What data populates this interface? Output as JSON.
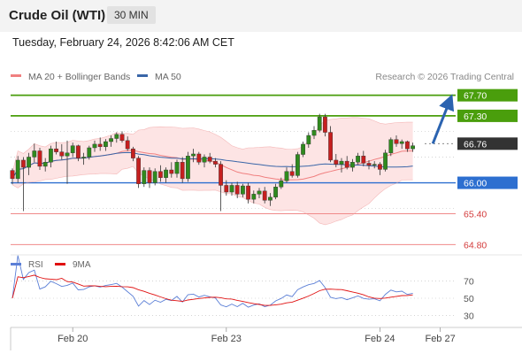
{
  "header": {
    "title": "Crude Oil (WTI)",
    "timeframe": "30 MIN"
  },
  "datetime": "Tuesday, February 24, 2026 8:42:06 AM CET",
  "colors": {
    "bollinger": "#f0a0a0",
    "bollinger_fill": "#fde4e4",
    "ma20": "#f08080",
    "ma50": "#3a66a8",
    "resistance": "#4a9e0c",
    "current": "#333333",
    "pivot": "#2d6fd0",
    "support": "#f08a8a",
    "candle_up": "#2f8a1e",
    "candle_down": "#c61f1f",
    "rsi": "#5b7fd6",
    "rsi_ma": "#e01010",
    "arrow": "#2b63b0"
  },
  "chart_data": [
    {
      "type": "candlestick",
      "legend": [
        {
          "name": "MA 20 + Bollinger Bands",
          "color": "#f08080"
        },
        {
          "name": "MA 50",
          "color": "#3a66a8"
        }
      ],
      "credit": "Research © 2026 Trading Central",
      "ylim": [
        64.6,
        67.9
      ],
      "x_ticks": [
        {
          "label": "Feb 20",
          "index": 11
        },
        {
          "label": "Feb 23",
          "index": 39
        },
        {
          "label": "Feb 24",
          "index": 67
        },
        {
          "label": "Feb 27",
          "index": 78
        }
      ],
      "levels": [
        {
          "value": 67.7,
          "label": "67.70",
          "kind": "resistance"
        },
        {
          "value": 67.3,
          "label": "67.30",
          "kind": "resistance"
        },
        {
          "value": 66.76,
          "label": "66.76",
          "kind": "current"
        },
        {
          "value": 66.0,
          "label": "66.00",
          "kind": "pivot"
        },
        {
          "value": 65.4,
          "label": "65.40",
          "kind": "support"
        },
        {
          "value": 64.8,
          "label": "64.80",
          "kind": "support"
        }
      ],
      "projection": {
        "from_index": 76,
        "from_value": 66.76,
        "to_value": 67.7
      },
      "candles": [
        [
          66.24,
          66.28,
          65.97,
          66.08
        ],
        [
          66.08,
          66.52,
          66.0,
          66.44
        ],
        [
          66.44,
          66.5,
          65.45,
          66.3
        ],
        [
          66.3,
          66.58,
          66.15,
          66.5
        ],
        [
          66.5,
          66.76,
          66.4,
          66.62
        ],
        [
          66.62,
          66.68,
          66.25,
          66.32
        ],
        [
          66.32,
          66.48,
          66.22,
          66.4
        ],
        [
          66.4,
          66.72,
          66.3,
          66.66
        ],
        [
          66.66,
          66.8,
          66.55,
          66.6
        ],
        [
          66.6,
          66.75,
          66.45,
          66.52
        ],
        [
          66.52,
          66.82,
          65.98,
          66.58
        ],
        [
          66.58,
          66.78,
          66.5,
          66.72
        ],
        [
          66.72,
          66.74,
          66.42,
          66.48
        ],
        [
          66.48,
          66.58,
          66.35,
          66.5
        ],
        [
          66.5,
          66.72,
          66.45,
          66.68
        ],
        [
          66.68,
          66.82,
          66.6,
          66.75
        ],
        [
          66.75,
          66.88,
          66.62,
          66.7
        ],
        [
          66.7,
          66.85,
          66.62,
          66.8
        ],
        [
          66.8,
          66.92,
          66.7,
          66.86
        ],
        [
          66.86,
          66.98,
          66.78,
          66.94
        ],
        [
          66.94,
          67.0,
          66.78,
          66.82
        ],
        [
          66.82,
          66.9,
          66.62,
          66.66
        ],
        [
          66.66,
          66.7,
          66.42,
          66.48
        ],
        [
          66.48,
          66.52,
          65.9,
          65.98
        ],
        [
          65.98,
          66.3,
          65.92,
          66.24
        ],
        [
          66.24,
          66.3,
          65.9,
          66.0
        ],
        [
          66.0,
          66.28,
          65.95,
          66.22
        ],
        [
          66.22,
          66.34,
          66.02,
          66.1
        ],
        [
          66.1,
          66.3,
          66.0,
          66.25
        ],
        [
          66.25,
          66.4,
          66.1,
          66.18
        ],
        [
          66.18,
          66.45,
          66.1,
          66.4
        ],
        [
          66.4,
          66.5,
          66.0,
          66.08
        ],
        [
          66.08,
          66.6,
          66.02,
          66.52
        ],
        [
          66.52,
          66.66,
          66.4,
          66.56
        ],
        [
          66.56,
          66.6,
          66.35,
          66.4
        ],
        [
          66.4,
          66.55,
          66.3,
          66.5
        ],
        [
          66.5,
          66.58,
          66.38,
          66.42
        ],
        [
          66.42,
          66.48,
          66.3,
          66.36
        ],
        [
          66.36,
          66.42,
          65.45,
          65.95
        ],
        [
          65.95,
          66.05,
          65.75,
          65.82
        ],
        [
          65.82,
          66.0,
          65.75,
          65.95
        ],
        [
          65.95,
          66.02,
          65.7,
          65.78
        ],
        [
          65.78,
          65.98,
          65.72,
          65.94
        ],
        [
          65.94,
          66.0,
          65.6,
          65.68
        ],
        [
          65.68,
          65.85,
          65.6,
          65.78
        ],
        [
          65.78,
          65.9,
          65.7,
          65.84
        ],
        [
          65.84,
          65.92,
          65.6,
          65.66
        ],
        [
          65.66,
          65.8,
          65.55,
          65.72
        ],
        [
          65.72,
          65.98,
          65.68,
          65.92
        ],
        [
          65.92,
          66.1,
          65.88,
          66.04
        ],
        [
          66.04,
          66.3,
          66.0,
          66.22
        ],
        [
          66.22,
          66.36,
          66.1,
          66.14
        ],
        [
          66.14,
          66.6,
          66.1,
          66.55
        ],
        [
          66.55,
          66.8,
          66.5,
          66.75
        ],
        [
          66.75,
          66.98,
          66.68,
          66.92
        ],
        [
          66.92,
          67.1,
          66.85,
          67.02
        ],
        [
          67.02,
          67.34,
          66.98,
          67.28
        ],
        [
          67.28,
          67.34,
          66.9,
          66.98
        ],
        [
          66.98,
          67.1,
          66.4,
          66.44
        ],
        [
          66.44,
          66.56,
          66.3,
          66.36
        ],
        [
          66.36,
          66.48,
          66.2,
          66.42
        ],
        [
          66.42,
          66.52,
          66.26,
          66.3
        ],
        [
          66.3,
          66.46,
          66.22,
          66.4
        ],
        [
          66.4,
          66.58,
          66.36,
          66.52
        ],
        [
          66.52,
          66.62,
          66.32,
          66.38
        ],
        [
          66.38,
          66.44,
          66.26,
          66.34
        ],
        [
          66.34,
          66.42,
          66.28,
          66.36
        ],
        [
          66.36,
          66.4,
          66.15,
          66.26
        ],
        [
          66.26,
          66.64,
          66.22,
          66.58
        ],
        [
          66.58,
          66.88,
          66.52,
          66.84
        ],
        [
          66.84,
          66.92,
          66.7,
          66.76
        ],
        [
          66.76,
          66.84,
          66.66,
          66.8
        ],
        [
          66.8,
          66.82,
          66.6,
          66.66
        ],
        [
          66.66,
          66.78,
          66.6,
          66.72
        ]
      ]
    },
    {
      "type": "line",
      "legend": [
        {
          "name": "RSI",
          "color": "#5b7fd6"
        },
        {
          "name": "9MA",
          "color": "#e01010"
        }
      ],
      "ylim": [
        20,
        80
      ],
      "y_ticks": [
        70,
        50,
        30
      ]
    }
  ]
}
